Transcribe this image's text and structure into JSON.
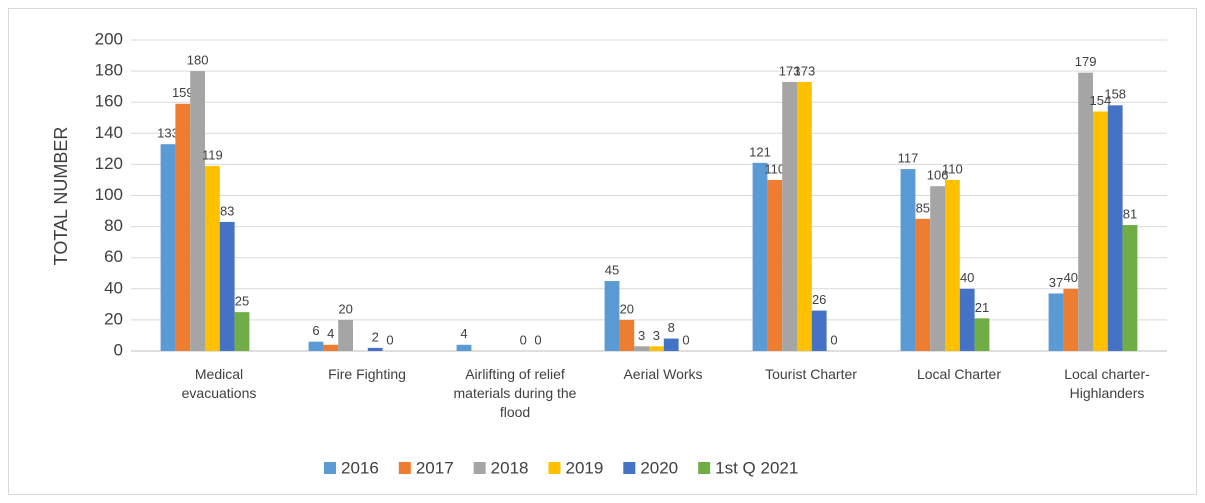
{
  "chart_data": {
    "type": "bar",
    "y_label": "TOTAL NUMBER",
    "categories": [
      "Medical evacuations",
      "Fire Fighting",
      "Airlifting of relief materials during the flood",
      "Aerial Works",
      "Tourist Charter",
      "Local Charter",
      "Local charter-Highlanders"
    ],
    "series": [
      {
        "name": "2016",
        "color": "#5b9bd5",
        "values": [
          133,
          6,
          4,
          45,
          121,
          117,
          37
        ]
      },
      {
        "name": "2017",
        "color": "#ed7d31",
        "values": [
          159,
          4,
          null,
          20,
          110,
          85,
          40
        ]
      },
      {
        "name": "2018",
        "color": "#a5a5a5",
        "values": [
          180,
          20,
          null,
          3,
          173,
          106,
          179
        ]
      },
      {
        "name": "2019",
        "color": "#ffc000",
        "values": [
          119,
          null,
          null,
          3,
          173,
          110,
          154
        ]
      },
      {
        "name": "2020",
        "color": "#4472c4",
        "values": [
          83,
          2,
          0,
          8,
          26,
          40,
          158
        ]
      },
      {
        "name": "1st Q 2021",
        "color": "#70ad47",
        "values": [
          25,
          0,
          0,
          0,
          0,
          21,
          81
        ]
      }
    ],
    "ylim": [
      0,
      200
    ],
    "yticks": [
      0,
      20,
      40,
      60,
      80,
      100,
      120,
      140,
      160,
      180,
      200
    ],
    "grid": true,
    "legend": "bottom"
  }
}
